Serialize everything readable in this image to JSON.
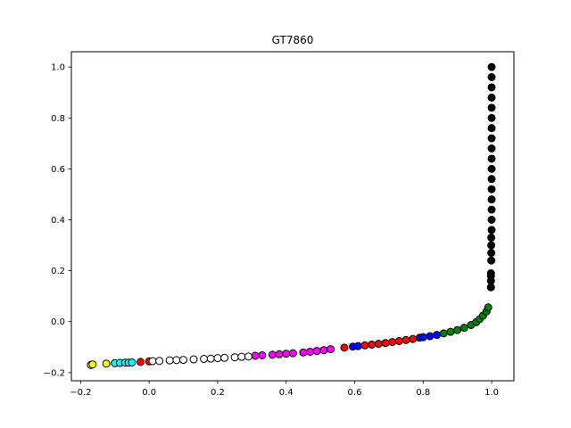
{
  "chart_data": {
    "type": "scatter",
    "title": "GT7860",
    "xlabel": "",
    "ylabel": "",
    "xlim": [
      -0.227,
      1.065
    ],
    "ylim": [
      -0.232,
      1.06
    ],
    "grid": false,
    "xticks": [
      -0.2,
      0.0,
      0.2,
      0.4,
      0.6,
      0.8,
      1.0
    ],
    "xtick_labels": [
      "−0.2",
      "0.0",
      "0.2",
      "0.4",
      "0.6",
      "0.8",
      "1.0"
    ],
    "yticks": [
      -0.2,
      0.0,
      0.2,
      0.4,
      0.6,
      0.8,
      1.0
    ],
    "ytick_labels": [
      "−0.2",
      "0.0",
      "0.2",
      "0.4",
      "0.6",
      "0.8",
      "1.0"
    ],
    "series": [
      {
        "color": "#ffff00",
        "points": [
          [
            -0.17,
            -0.17
          ],
          [
            -0.165,
            -0.168
          ],
          [
            -0.125,
            -0.165
          ]
        ]
      },
      {
        "color": "#00ffff",
        "points": [
          [
            -0.1,
            -0.163
          ],
          [
            -0.085,
            -0.162
          ],
          [
            -0.07,
            -0.161
          ],
          [
            -0.06,
            -0.161
          ],
          [
            -0.05,
            -0.16
          ]
        ]
      },
      {
        "color": "#ff0000",
        "points": [
          [
            -0.025,
            -0.158
          ],
          [
            0.0,
            -0.156
          ]
        ]
      },
      {
        "color": "#ffffff",
        "points": [
          [
            0.01,
            -0.155
          ],
          [
            0.03,
            -0.154
          ],
          [
            0.06,
            -0.152
          ],
          [
            0.08,
            -0.151
          ],
          [
            0.1,
            -0.15
          ],
          [
            0.13,
            -0.148
          ],
          [
            0.16,
            -0.146
          ],
          [
            0.18,
            -0.145
          ],
          [
            0.2,
            -0.143
          ],
          [
            0.22,
            -0.142
          ],
          [
            0.25,
            -0.14
          ],
          [
            0.27,
            -0.138
          ],
          [
            0.29,
            -0.137
          ]
        ]
      },
      {
        "color": "#ff00ff",
        "points": [
          [
            0.31,
            -0.134
          ],
          [
            0.33,
            -0.132
          ],
          [
            0.36,
            -0.13
          ],
          [
            0.38,
            -0.128
          ],
          [
            0.4,
            -0.126
          ],
          [
            0.42,
            -0.124
          ],
          [
            0.45,
            -0.121
          ],
          [
            0.47,
            -0.118
          ],
          [
            0.49,
            -0.115
          ],
          [
            0.51,
            -0.112
          ],
          [
            0.53,
            -0.108
          ]
        ]
      },
      {
        "color": "#ff0000",
        "points": [
          [
            0.57,
            -0.102
          ]
        ]
      },
      {
        "color": "#0000ff",
        "points": [
          [
            0.595,
            -0.098
          ],
          [
            0.61,
            -0.096
          ]
        ]
      },
      {
        "color": "#ff0000",
        "points": [
          [
            0.63,
            -0.093
          ],
          [
            0.65,
            -0.09
          ],
          [
            0.67,
            -0.087
          ],
          [
            0.69,
            -0.084
          ],
          [
            0.71,
            -0.08
          ],
          [
            0.73,
            -0.076
          ],
          [
            0.75,
            -0.072
          ],
          [
            0.77,
            -0.068
          ]
        ]
      },
      {
        "color": "#0000ff",
        "points": [
          [
            0.79,
            -0.063
          ],
          [
            0.8,
            -0.061
          ],
          [
            0.82,
            -0.057
          ],
          [
            0.84,
            -0.052
          ]
        ]
      },
      {
        "color": "#008000",
        "points": [
          [
            0.86,
            -0.046
          ],
          [
            0.88,
            -0.04
          ],
          [
            0.9,
            -0.033
          ],
          [
            0.92,
            -0.024
          ],
          [
            0.94,
            -0.013
          ],
          [
            0.955,
            -0.002
          ],
          [
            0.965,
            0.01
          ],
          [
            0.975,
            0.024
          ],
          [
            0.985,
            0.04
          ],
          [
            0.99,
            0.056
          ]
        ]
      },
      {
        "color": "#000000",
        "points": [
          [
            0.998,
            0.135
          ],
          [
            0.998,
            0.16
          ],
          [
            0.998,
            0.18
          ],
          [
            0.998,
            0.19
          ],
          [
            0.999,
            0.24
          ],
          [
            0.999,
            0.27
          ],
          [
            0.999,
            0.3
          ],
          [
            0.999,
            0.33
          ],
          [
            1.0,
            0.36
          ],
          [
            1.0,
            0.4
          ],
          [
            1.0,
            0.44
          ],
          [
            1.0,
            0.48
          ],
          [
            1.0,
            0.52
          ],
          [
            1.0,
            0.56
          ],
          [
            1.0,
            0.6
          ],
          [
            1.0,
            0.64
          ],
          [
            1.0,
            0.68
          ],
          [
            1.0,
            0.72
          ],
          [
            1.0,
            0.76
          ],
          [
            1.0,
            0.8
          ],
          [
            1.0,
            0.84
          ],
          [
            1.0,
            0.88
          ],
          [
            1.0,
            0.92
          ],
          [
            1.0,
            0.96
          ],
          [
            1.0,
            1.0
          ]
        ]
      }
    ]
  }
}
